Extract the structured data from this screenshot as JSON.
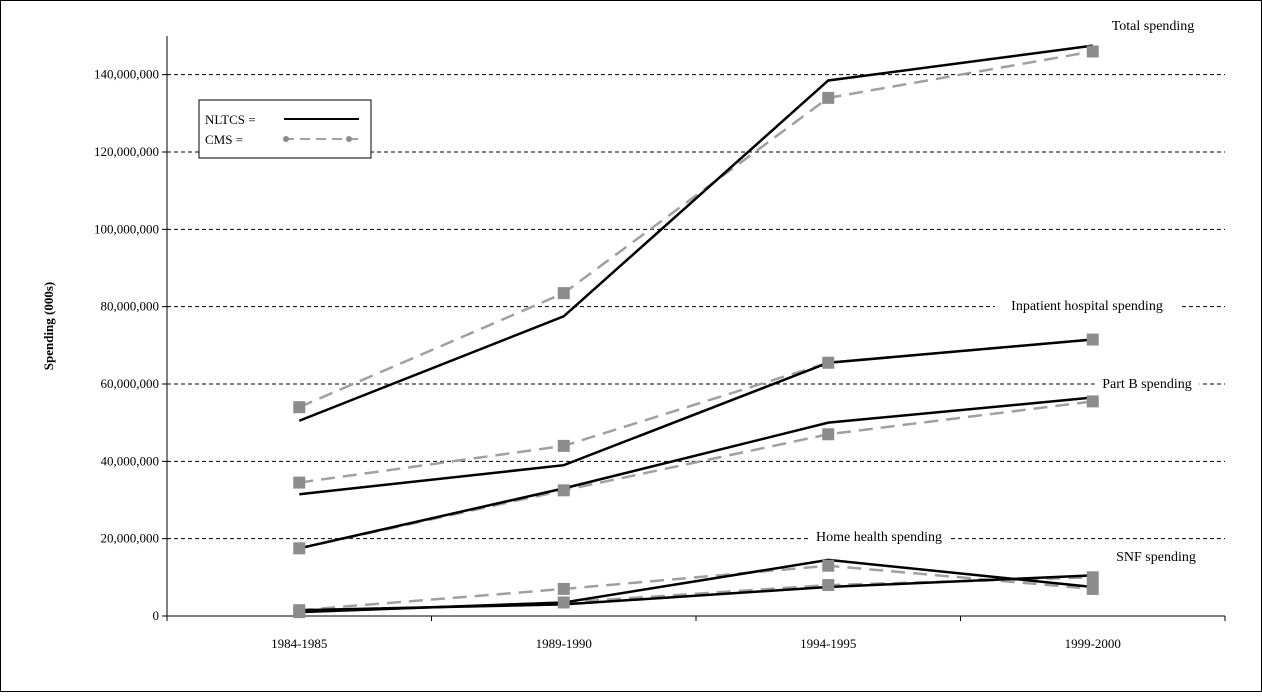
{
  "chart_data": {
    "type": "line",
    "title": "",
    "xlabel": "",
    "ylabel": "Spending (000s)",
    "categories": [
      "1984-1985",
      "1989-1990",
      "1994-1995",
      "1999-2000"
    ],
    "ylim": [
      0,
      150000000
    ],
    "y_ticks": [
      "0",
      "20,000,000",
      "40,000,000",
      "60,000,000",
      "80,000,000",
      "100,000,000",
      "120,000,000",
      "140,000,000"
    ],
    "grid": "horizontal dashed",
    "legend": {
      "position": "top-left",
      "entries": [
        {
          "label": "NLTCS =",
          "style": "solid"
        },
        {
          "label": "CMS =",
          "style": "dashed-markers"
        }
      ]
    },
    "colors": {
      "nltcs": "#000000",
      "cms": "#a0a0a0",
      "marker": "#8c8c8c"
    },
    "groups": [
      {
        "label": "Total spending",
        "nltcs": [
          50500000,
          77500000,
          138500000,
          147500000
        ],
        "cms": [
          54000000,
          83500000,
          134000000,
          146000000
        ]
      },
      {
        "label": "Inpatient hospital spending",
        "nltcs": [
          31500000,
          39000000,
          65500000,
          71500000
        ],
        "cms": [
          34500000,
          44000000,
          65500000,
          71500000
        ]
      },
      {
        "label": "Part B spending",
        "nltcs": [
          17500000,
          33000000,
          50000000,
          56500000
        ],
        "cms": [
          17500000,
          32500000,
          47000000,
          55500000
        ]
      },
      {
        "label": "Home health spending",
        "nltcs": [
          1000000,
          3500000,
          14500000,
          7500000
        ],
        "cms": [
          1500000,
          7000000,
          13000000,
          7000000
        ]
      },
      {
        "label": "SNF spending",
        "nltcs": [
          1500000,
          3000000,
          7500000,
          10500000
        ],
        "cms": [
          1000000,
          3500000,
          8000000,
          10000000
        ]
      }
    ]
  }
}
